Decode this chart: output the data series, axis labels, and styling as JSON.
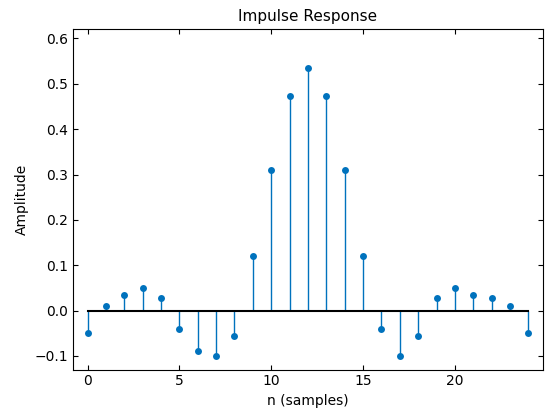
{
  "title": "Impulse Response",
  "xlabel": "n (samples)",
  "ylabel": "Amplitude",
  "n": [
    0,
    1,
    2,
    3,
    4,
    5,
    6,
    7,
    8,
    9,
    10,
    11,
    12,
    13,
    14,
    15,
    16,
    17,
    18,
    19,
    20,
    21,
    22,
    23,
    24
  ],
  "y": [
    -0.05,
    0.01,
    0.035,
    0.05,
    0.028,
    -0.04,
    -0.09,
    -0.101,
    -0.055,
    0.12,
    0.31,
    0.474,
    0.535,
    0.474,
    0.31,
    0.12,
    -0.04,
    -0.101,
    -0.055,
    0.028,
    0.05,
    0.035,
    0.028,
    0.01,
    -0.05
  ],
  "ylim": [
    -0.13,
    0.62
  ],
  "xlim": [
    -0.8,
    24.8
  ],
  "xticks": [
    0,
    5,
    10,
    15,
    20
  ],
  "yticks": [
    -0.1,
    0.0,
    0.1,
    0.2,
    0.3,
    0.4,
    0.5,
    0.6
  ],
  "stem_color": "#0072BD",
  "baseline_color": "#000000",
  "title_fontsize": 11,
  "label_fontsize": 10,
  "tick_fontsize": 10,
  "marker_size": 5,
  "stem_linewidth": 1.0,
  "baseline_linewidth": 1.5
}
